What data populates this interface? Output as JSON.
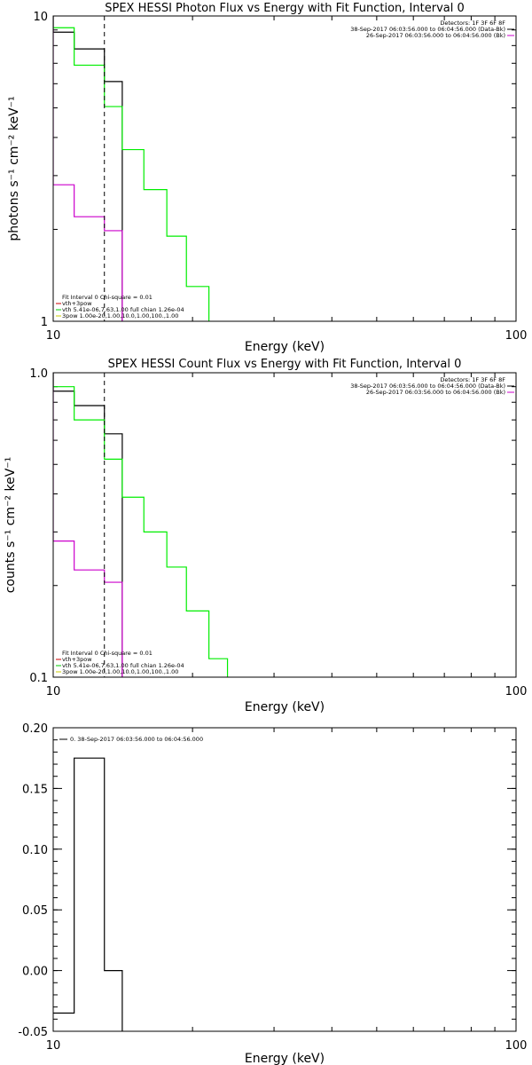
{
  "chart_data": [
    {
      "type": "line",
      "title": "SPEX HESSI Photon Flux vs Energy with Fit Function, Interval 0",
      "xlabel": "Energy (keV)",
      "ylabel": "photons s⁻¹ cm⁻² keV⁻¹",
      "xscale": "log",
      "yscale": "log",
      "xlim": [
        10,
        100
      ],
      "ylim": [
        1,
        10
      ],
      "xticks": [
        {
          "value": 10,
          "label": "10"
        },
        {
          "value": 100,
          "label": "100"
        }
      ],
      "yticks": [
        {
          "value": 1,
          "label": "1"
        },
        {
          "value": 10,
          "label": "10"
        }
      ],
      "info": [
        "Detectors: 1F 3F 6F 8F",
        "38-Sep-2017 06:03:56.000 to 06:04:56.000 (Data-Bk)",
        "26-Sep-2017 06:03:56.000 to 06:04:56.000 (Bk)"
      ],
      "info_colors": [
        "#000000",
        "#cc00cc"
      ],
      "fit_legend": [
        {
          "text": "Fit Interval 0   Chi-square = 0.01",
          "color": null
        },
        {
          "text": "vth+3pow",
          "color": "#cc0000"
        },
        {
          "text": "vth 5.41e-06,7.63,1.00  full chian 1.26e-04",
          "color": "#00cc00"
        },
        {
          "text": "3pow 1.00e-20,1.00,10.0,1.00,100.,1.00",
          "color": "#cccc00"
        }
      ],
      "vline_x": 12.9,
      "series": [
        {
          "color": "#000000",
          "edges": [
            10,
            11.1,
            12.9,
            14.1
          ],
          "values": [
            8.85,
            7.8,
            6.1
          ]
        },
        {
          "color": "#00ee00",
          "edges": [
            10,
            11.1,
            12.9,
            14.1,
            15.7,
            17.6,
            19.4,
            21.7
          ],
          "values": [
            9.15,
            6.9,
            5.05,
            3.65,
            2.7,
            1.9,
            1.3
          ]
        },
        {
          "color": "#cc00cc",
          "edges": [
            10,
            11.1,
            12.9,
            14.1
          ],
          "values": [
            2.8,
            2.2,
            1.98
          ]
        }
      ]
    },
    {
      "type": "line",
      "title": "SPEX HESSI Count Flux vs Energy with Fit Function, Interval 0",
      "xlabel": "Energy (keV)",
      "ylabel": "counts s⁻¹ cm⁻² keV⁻¹",
      "xscale": "log",
      "yscale": "log",
      "xlim": [
        10,
        100
      ],
      "ylim": [
        0.1,
        1.0
      ],
      "xticks": [
        {
          "value": 10,
          "label": "10"
        },
        {
          "value": 100,
          "label": "100"
        }
      ],
      "yticks": [
        {
          "value": 0.1,
          "label": "0.1"
        },
        {
          "value": 1.0,
          "label": "1.0"
        }
      ],
      "info": [
        "Detectors: 1F 3F 6F 8F",
        "38-Sep-2017 06:03:56.000 to 06:04:56.000 (Data-Bk)",
        "26-Sep-2017 06:03:56.000 to 06:04:56.000 (Bk)"
      ],
      "info_colors": [
        "#000000",
        "#cc00cc"
      ],
      "fit_legend": [
        {
          "text": "Fit Interval 0   Chi-square = 0.01",
          "color": null
        },
        {
          "text": "vth+3pow",
          "color": "#cc0000"
        },
        {
          "text": "vth 5.41e-06,7.63,1.00  full chian 1.26e-04",
          "color": "#00cc00"
        },
        {
          "text": "3pow 1.00e-20,1.00,10.0,1.00,100.,1.00",
          "color": "#cccc00"
        }
      ],
      "vline_x": 12.9,
      "series": [
        {
          "color": "#000000",
          "edges": [
            10,
            11.1,
            12.9,
            14.1
          ],
          "values": [
            0.87,
            0.78,
            0.63
          ]
        },
        {
          "color": "#00ee00",
          "edges": [
            10,
            11.1,
            12.9,
            14.1,
            15.7,
            17.6,
            19.4,
            21.7,
            23.8
          ],
          "values": [
            0.9,
            0.7,
            0.52,
            0.39,
            0.3,
            0.23,
            0.165,
            0.115
          ]
        },
        {
          "color": "#cc00cc",
          "edges": [
            10,
            11.1,
            12.9,
            14.1
          ],
          "values": [
            0.28,
            0.225,
            0.205
          ]
        }
      ]
    },
    {
      "type": "line",
      "title": "",
      "xlabel": "Energy (keV)",
      "ylabel": "",
      "xscale": "log",
      "yscale": "linear",
      "xlim": [
        10,
        100
      ],
      "ylim": [
        -0.05,
        0.2
      ],
      "xticks": [
        {
          "value": 10,
          "label": "10"
        },
        {
          "value": 100,
          "label": "100"
        }
      ],
      "yticks": [
        {
          "value": -0.05,
          "label": "-0.05"
        },
        {
          "value": 0.0,
          "label": "0.00"
        },
        {
          "value": 0.05,
          "label": "0.05"
        },
        {
          "value": 0.1,
          "label": "0.10"
        },
        {
          "value": 0.15,
          "label": "0.15"
        },
        {
          "value": 0.2,
          "label": "0.20"
        }
      ],
      "legend": "0. 38-Sep-2017 06:03:56.000 to 06:04:56.000",
      "series": [
        {
          "color": "#000000",
          "edges": [
            10,
            11.1,
            12.9,
            14.1
          ],
          "values": [
            -0.035,
            0.175,
            0.0
          ]
        }
      ]
    }
  ]
}
